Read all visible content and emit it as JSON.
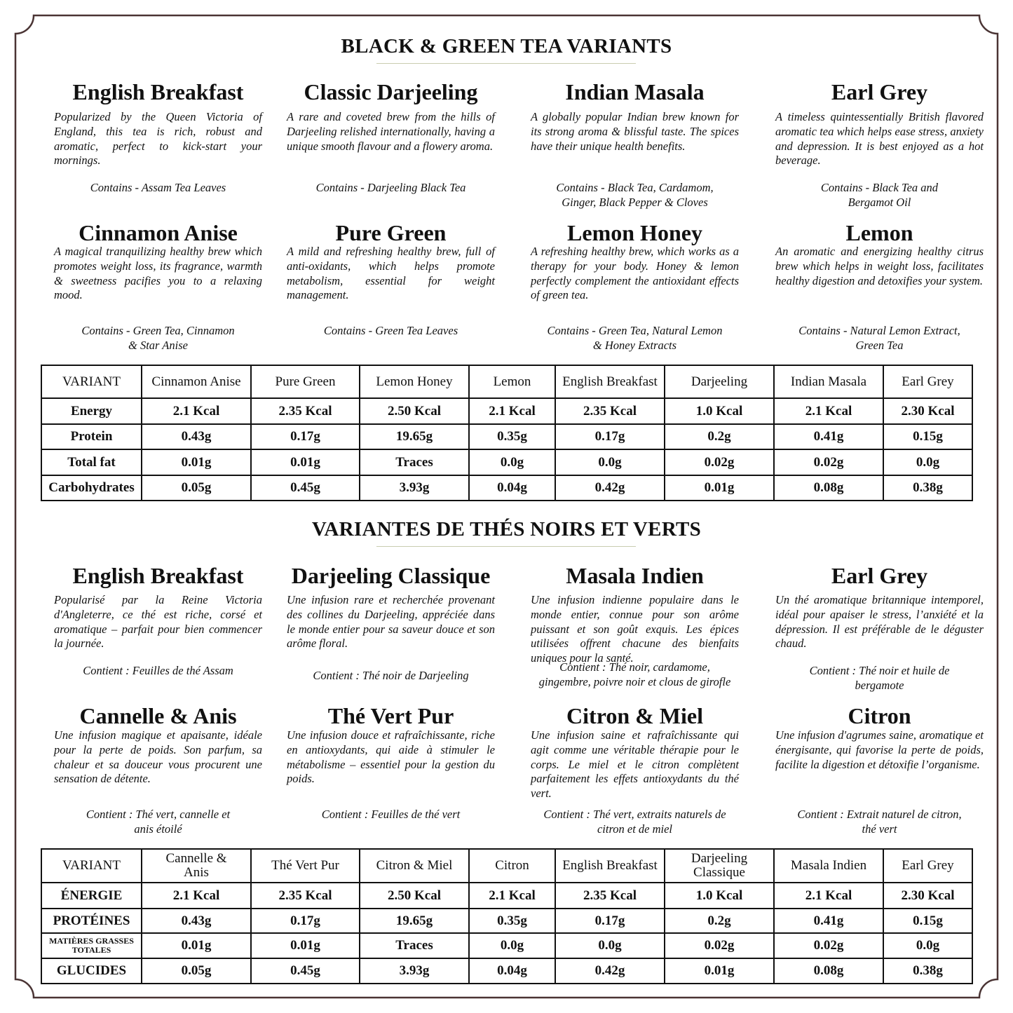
{
  "colors": {
    "frame": "#4a3434",
    "rule": "#c9cdb0",
    "text": "#111111"
  },
  "english": {
    "title": "BLACK & GREEN TEA VARIANTS",
    "cards": [
      {
        "name": "English Breakfast",
        "desc": "Popularized by the Queen Victoria of England, this tea is rich, robust and aromatic, perfect to kick-start your mornings.",
        "contains": "Contains - Assam Tea Leaves"
      },
      {
        "name": "Classic Darjeeling",
        "desc": "A rare and coveted brew from the hills of Darjeeling relished internationally, having a unique smooth flavour and a flowery aroma.",
        "contains": "Contains - Darjeeling Black Tea"
      },
      {
        "name": "Indian Masala",
        "desc": "A globally popular Indian brew known for its strong aroma & blissful taste. The spices have their unique health benefits.",
        "contains": "Contains - Black Tea, Cardamom,\nGinger, Black Pepper & Cloves"
      },
      {
        "name": "Earl Grey",
        "desc": "A timeless quintessentially British flavored aromatic tea which helps ease stress, anxiety and depression. It is best enjoyed as a hot beverage.",
        "contains": "Contains - Black Tea and\nBergamot Oil"
      },
      {
        "name": "Cinnamon Anise",
        "desc": "A magical tranquilizing healthy brew which promotes weight loss, its fragrance, warmth & sweetness pacifies you to a relaxing mood.",
        "contains": "Contains - Green Tea, Cinnamon\n& Star Anise"
      },
      {
        "name": "Pure Green",
        "desc": "A mild and refreshing healthy brew, full of anti-oxidants, which helps promote metabolism, essential for weight management.",
        "contains": "Contains - Green Tea Leaves"
      },
      {
        "name": "Lemon Honey",
        "desc": "A refreshing healthy brew, which works as a therapy for your body. Honey & lemon perfectly complement the antioxidant effects of green tea.",
        "contains": "Contains - Green Tea, Natural Lemon\n& Honey Extracts"
      },
      {
        "name": "Lemon",
        "desc": "An aromatic and energizing healthy citrus brew which helps in weight loss, facilitates healthy digestion and detoxifies your system.",
        "contains": "Contains - Natural Lemon Extract,\nGreen Tea"
      }
    ],
    "table": {
      "header": [
        "VARIANT",
        "Cinnamon Anise",
        "Pure Green",
        "Lemon Honey",
        "Lemon",
        "English Breakfast",
        "Darjeeling",
        "Indian Masala",
        "Earl Grey"
      ],
      "rows": [
        [
          "Energy",
          "2.1 Kcal",
          "2.35 Kcal",
          "2.50 Kcal",
          "2.1 Kcal",
          "2.35 Kcal",
          "1.0 Kcal",
          "2.1 Kcal",
          "2.30 Kcal"
        ],
        [
          "Protein",
          "0.43g",
          "0.17g",
          "19.65g",
          "0.35g",
          "0.17g",
          "0.2g",
          "0.41g",
          "0.15g"
        ],
        [
          "Total fat",
          "0.01g",
          "0.01g",
          "Traces",
          "0.0g",
          "0.0g",
          "0.02g",
          "0.02g",
          "0.0g"
        ],
        [
          "Carbohydrates",
          "0.05g",
          "0.45g",
          "3.93g",
          "0.04g",
          "0.42g",
          "0.01g",
          "0.08g",
          "0.38g"
        ]
      ]
    }
  },
  "french": {
    "title": "VARIANTES DE THÉS NOIRS ET VERTS",
    "cards": [
      {
        "name": "English Breakfast",
        "desc": "Popularisé par la Reine Victoria d'Angleterre, ce thé est riche, corsé et aromatique – parfait pour bien commencer la journée.",
        "contains": "Contient : Feuilles de thé Assam"
      },
      {
        "name": "Darjeeling Classique",
        "desc": "Une infusion rare et recherchée provenant des collines du Darjeeling, appréciée dans le monde entier pour sa saveur douce et son arôme floral.",
        "contains": "Contient : Thé noir de Darjeeling"
      },
      {
        "name": "Masala Indien",
        "desc": "Une infusion indienne populaire dans le monde entier, connue pour son arôme puissant et son goût exquis. Les épices utilisées offrent chacune des bienfaits uniques pour la santé.",
        "contains": "Contient : Thé noir, cardamome,\ngingembre, poivre noir et clous de girofle"
      },
      {
        "name": "Earl Grey",
        "desc": "Un thé aromatique britannique intemporel, idéal pour apaiser le stress, l’anxiété et la dépression. Il est préférable de le déguster chaud.",
        "contains": "Contient : Thé noir et huile de\nbergamote"
      },
      {
        "name": "Cannelle & Anis",
        "desc": "Une infusion magique et apaisante, idéale pour la perte de poids. Son parfum, sa chaleur et sa douceur vous procurent une sensation de détente.",
        "contains": "Contient : Thé vert, cannelle et\nanis étoilé"
      },
      {
        "name": "Thé Vert Pur",
        "desc": "Une infusion douce et rafraîchissante, riche en antioxydants, qui aide à stimuler le métabolisme – essentiel pour la gestion du poids.",
        "contains": "Contient : Feuilles de thé vert"
      },
      {
        "name": "Citron & Miel",
        "desc": "Une infusion saine et rafraîchissante qui agit comme une véritable thérapie pour le corps. Le miel et le citron complètent parfaitement les effets antioxydants du thé vert.",
        "contains": "Contient : Thé vert, extraits naturels de\ncitron et de miel"
      },
      {
        "name": "Citron",
        "desc": "Une infusion d'agrumes saine, aromatique et énergisante, qui favorise la perte de poids, facilite la digestion et détoxifie l’organisme.",
        "contains": "Contient : Extrait naturel de citron,\nthé vert"
      }
    ],
    "table": {
      "header": [
        "VARIANT",
        "Cannelle &\nAnis",
        "Thé Vert Pur",
        "Citron & Miel",
        "Citron",
        "English Breakfast",
        "Darjeeling\nClassique",
        "Masala Indien",
        "Earl Grey"
      ],
      "rows": [
        [
          "ÉNERGIE",
          "2.1 Kcal",
          "2.35 Kcal",
          "2.50 Kcal",
          "2.1 Kcal",
          "2.35 Kcal",
          "1.0 Kcal",
          "2.1 Kcal",
          "2.30 Kcal"
        ],
        [
          "PROTÉINES",
          "0.43g",
          "0.17g",
          "19.65g",
          "0.35g",
          "0.17g",
          "0.2g",
          "0.41g",
          "0.15g"
        ],
        [
          "MATIÈRES GRASSES\nTOTALES",
          "0.01g",
          "0.01g",
          "Traces",
          "0.0g",
          "0.0g",
          "0.02g",
          "0.02g",
          "0.0g"
        ],
        [
          "GLUCIDES",
          "0.05g",
          "0.45g",
          "3.93g",
          "0.04g",
          "0.42g",
          "0.01g",
          "0.08g",
          "0.38g"
        ]
      ]
    }
  }
}
